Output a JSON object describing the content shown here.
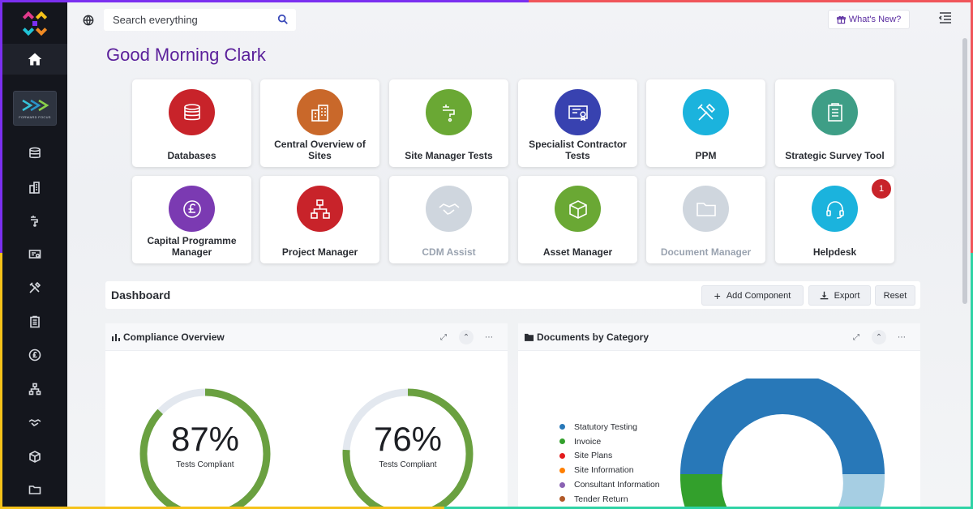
{
  "search": {
    "placeholder": "Search everything"
  },
  "header": {
    "whats_new": "What's New?"
  },
  "greeting": "Good Morning Clark",
  "org_badge": {
    "line1": "FORWARD FOCUS"
  },
  "tiles": [
    {
      "label": "Databases",
      "color": "#c8232a",
      "icon": "database-icon",
      "disabled": false
    },
    {
      "label": "Central Overview of Sites",
      "color": "#c9682a",
      "icon": "buildings-icon",
      "disabled": false
    },
    {
      "label": "Site Manager Tests",
      "color": "#6aa834",
      "icon": "tap-icon",
      "disabled": false
    },
    {
      "label": "Specialist Contractor Tests",
      "color": "#3842b0",
      "icon": "certificate-icon",
      "disabled": false
    },
    {
      "label": "PPM",
      "color": "#1bb3dd",
      "icon": "tools-icon",
      "disabled": false
    },
    {
      "label": "Strategic Survey Tool",
      "color": "#3e9e86",
      "icon": "clipboard-icon",
      "disabled": false
    },
    {
      "label": "Capital Programme Manager",
      "color": "#7b3ab2",
      "icon": "pound-icon",
      "disabled": false
    },
    {
      "label": "Project Manager",
      "color": "#c8232a",
      "icon": "hierarchy-icon",
      "disabled": false
    },
    {
      "label": "CDM Assist",
      "color": "#cfd6de",
      "icon": "handshake-icon",
      "disabled": true
    },
    {
      "label": "Asset Manager",
      "color": "#6aa834",
      "icon": "box-icon",
      "disabled": false
    },
    {
      "label": "Document Manager",
      "color": "#cfd6de",
      "icon": "folder-icon",
      "disabled": true
    },
    {
      "label": "Helpdesk",
      "color": "#1bb3dd",
      "icon": "headset-icon",
      "disabled": false,
      "badge": "1"
    }
  ],
  "dashboard": {
    "title": "Dashboard",
    "add_component": "Add Component",
    "export": "Export",
    "reset": "Reset"
  },
  "compliance": {
    "title": "Compliance Overview",
    "gauges": [
      {
        "value": "87%",
        "label": "Tests Compliant",
        "fraction": 0.87
      },
      {
        "value": "76%",
        "label": "Tests Compliant",
        "fraction": 0.76
      }
    ]
  },
  "documents": {
    "title": "Documents by Category",
    "legend": [
      {
        "label": "Statutory Testing",
        "color": "#2878b8"
      },
      {
        "label": "Invoice",
        "color": "#33a02c"
      },
      {
        "label": "Site Plans",
        "color": "#e31a1c"
      },
      {
        "label": "Site Information",
        "color": "#ff7f00"
      },
      {
        "label": "Consultant Information",
        "color": "#8a62b3"
      },
      {
        "label": "Tender Return",
        "color": "#b15928"
      }
    ]
  },
  "colors": {
    "sidebar": "#14161d",
    "accent": "#5a1f9a",
    "gauge_fill": "#6aa040",
    "gauge_track": "#e3e8ef"
  }
}
